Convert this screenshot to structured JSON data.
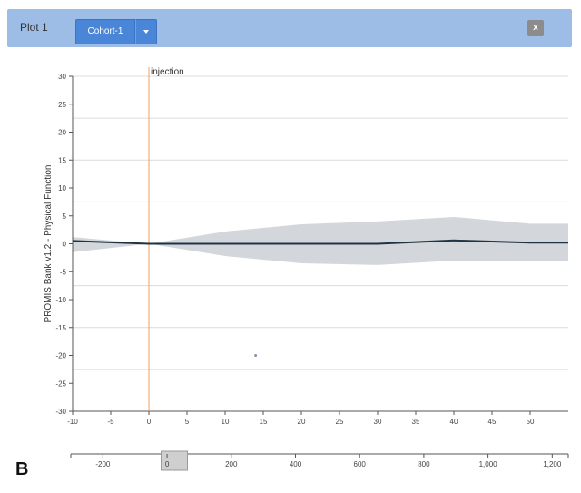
{
  "header": {
    "title": "Plot 1",
    "cohort_label": "Cohort-1",
    "close_label": "x"
  },
  "figure_label": "B",
  "chart_data": {
    "type": "area",
    "ylabel": "PROMIS Bank v1.2 - Physical Function",
    "xlim": [
      -10,
      55
    ],
    "ylim": [
      -30,
      30
    ],
    "xticks": [
      -10,
      -5,
      0,
      5,
      10,
      15,
      20,
      25,
      30,
      35,
      40,
      45,
      50
    ],
    "yticks": [
      30,
      25,
      20,
      15,
      10,
      5,
      0,
      -5,
      -10,
      -15,
      -20,
      -25,
      -30
    ],
    "gridlines_y": [
      30,
      22.5,
      15,
      7.5,
      0,
      -7.5,
      -15,
      -22.5
    ],
    "annotation": {
      "label": "injection",
      "x": 0
    },
    "mean_line": {
      "x": [
        -10,
        0,
        10,
        20,
        30,
        40,
        50,
        55
      ],
      "y": [
        0.5,
        0,
        0,
        0,
        0,
        0.6,
        0.2,
        0.2
      ]
    },
    "band": {
      "x": [
        -10,
        0,
        10,
        20,
        30,
        40,
        50,
        55
      ],
      "upper": [
        1.2,
        0,
        2.2,
        3.5,
        4.0,
        4.8,
        3.6,
        3.6
      ],
      "lower": [
        -1.5,
        0,
        -2.2,
        -3.5,
        -3.8,
        -3.0,
        -3.0,
        -3.0
      ]
    },
    "outlier": {
      "x": 14,
      "y": -20
    },
    "band_color": "#d3d7dc",
    "line_color": "#1f3344",
    "annotation_color": "#f0a060",
    "brush": {
      "xticks": [
        -200,
        0,
        200,
        400,
        600,
        800,
        1000,
        1200
      ],
      "xtick_labels": [
        "-200",
        "0",
        "200",
        "400",
        "600",
        "800",
        "1,000",
        "1,200"
      ],
      "xlim": [
        -300,
        1250
      ],
      "selection": [
        -10,
        55
      ]
    }
  }
}
